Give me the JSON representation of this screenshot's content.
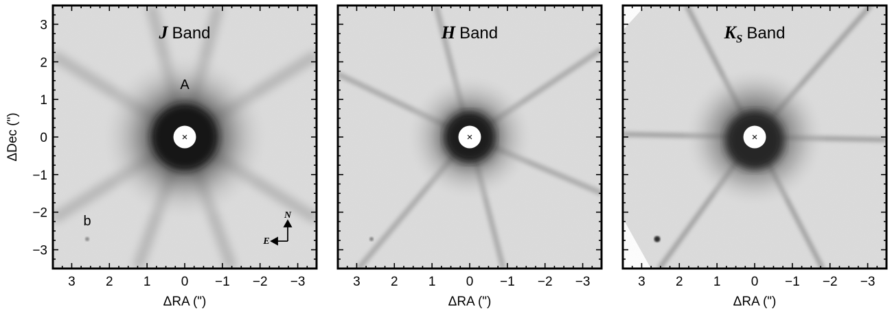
{
  "figure": {
    "xlabel": "ΔRA (\")",
    "ylabel": "ΔDec (\")",
    "xticks": [
      "3",
      "2",
      "1",
      "0",
      "−1",
      "−2",
      "−3"
    ],
    "yticks": [
      "3",
      "2",
      "1",
      "0",
      "−1",
      "−2",
      "−3"
    ],
    "xtick_values": [
      3,
      2,
      1,
      0,
      -1,
      -2,
      -3
    ],
    "ytick_values": [
      3,
      2,
      1,
      0,
      -1,
      -2,
      -3
    ],
    "xlim": [
      3.5,
      -3.5
    ],
    "ylim": [
      -3.5,
      3.5
    ],
    "colormap": "grayscale",
    "background_color": "#dedede",
    "core_color": "#141414"
  },
  "panels": [
    {
      "band_letter": "J",
      "band_sub": "",
      "band_word": "Band"
    },
    {
      "band_letter": "H",
      "band_sub": "",
      "band_word": "Band"
    },
    {
      "band_letter": "K",
      "band_sub": "S",
      "band_word": "Band"
    }
  ],
  "labels": {
    "primary": "A",
    "companion": "b",
    "north": "N",
    "east": "E",
    "center_marker": "×"
  },
  "companion_position_arcsec": {
    "dra": 2.6,
    "ddec": -2.7
  }
}
